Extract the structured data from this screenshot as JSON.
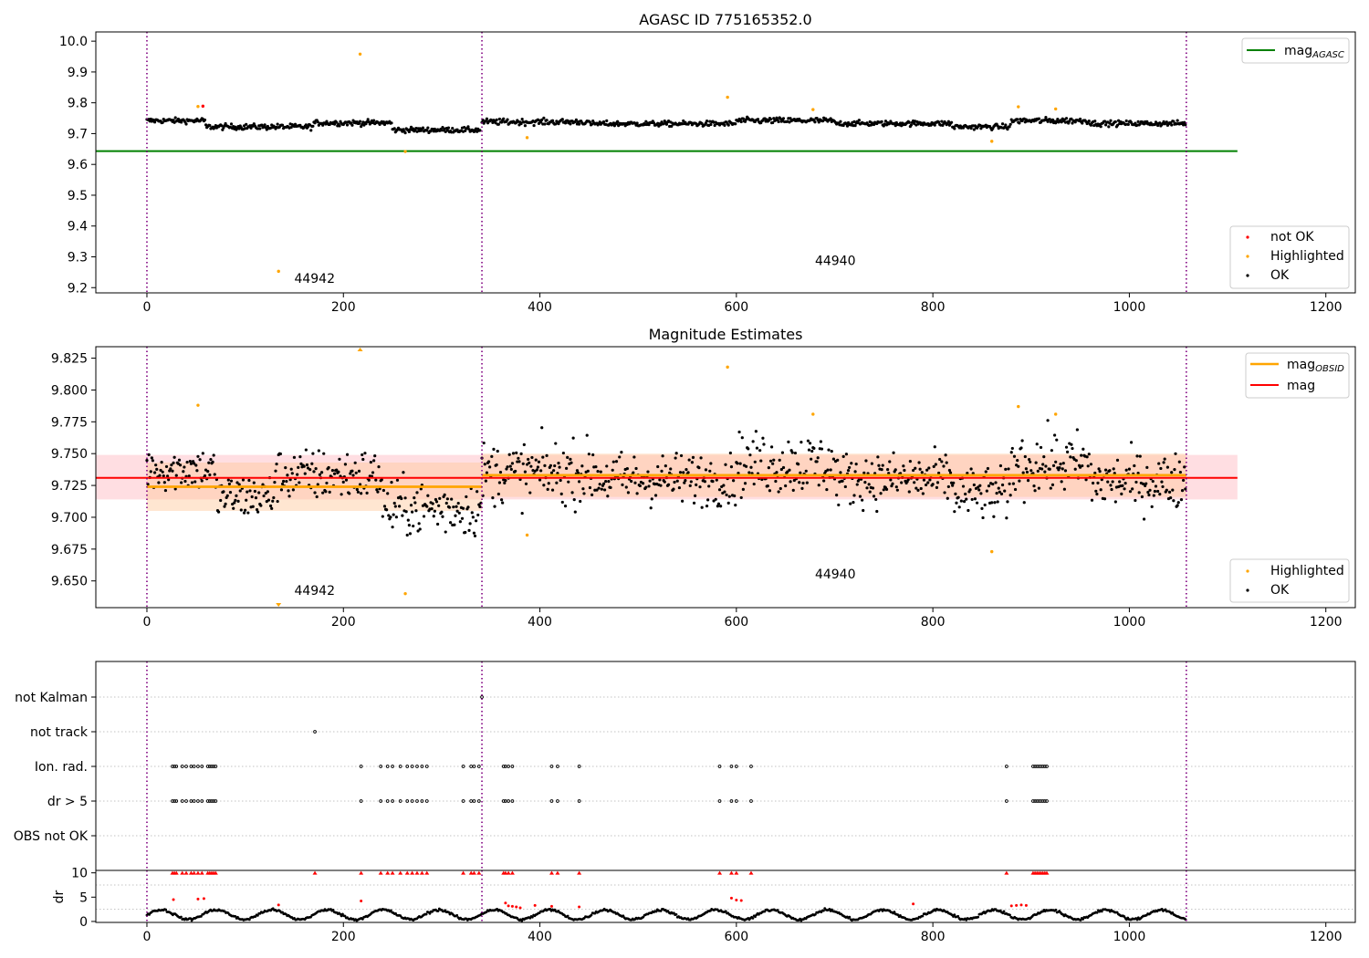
{
  "chart_data": [
    {
      "type": "scatter",
      "title": "AGASC ID 775165352.0",
      "xlabel": "",
      "ylabel": "",
      "xlim": [
        -52,
        1230
      ],
      "ylim": [
        9.183,
        10.03
      ],
      "xticks": [
        0,
        200,
        400,
        600,
        800,
        1000,
        1200
      ],
      "yticks": [
        9.2,
        9.3,
        9.4,
        9.5,
        9.6,
        9.7,
        9.8,
        9.9,
        10.0
      ],
      "grid": false,
      "obs_boundaries": [
        0,
        341,
        1058
      ],
      "annotations": [
        {
          "text": "44942",
          "x": 150,
          "y": 9.215
        },
        {
          "text": "44940",
          "x": 680,
          "y": 9.273
        }
      ],
      "reference_line": {
        "name": "mag_AGASC",
        "label_main": "mag",
        "label_sub": "AGASC",
        "y": 9.643,
        "x_range": [
          -52,
          1110
        ],
        "color": "#008000"
      },
      "series_ok": {
        "name": "OK",
        "color": "#000000",
        "segments": [
          {
            "x0": 0,
            "x1": 60,
            "level": 9.742,
            "spread": 0.014
          },
          {
            "x0": 60,
            "x1": 170,
            "level": 9.722,
            "spread": 0.015
          },
          {
            "x0": 170,
            "x1": 250,
            "level": 9.735,
            "spread": 0.015
          },
          {
            "x0": 250,
            "x1": 340,
            "level": 9.712,
            "spread": 0.014
          },
          {
            "x0": 341,
            "x1": 450,
            "level": 9.738,
            "spread": 0.016
          },
          {
            "x0": 450,
            "x1": 600,
            "level": 9.732,
            "spread": 0.014
          },
          {
            "x0": 600,
            "x1": 700,
            "level": 9.742,
            "spread": 0.016
          },
          {
            "x0": 700,
            "x1": 820,
            "level": 9.733,
            "spread": 0.014
          },
          {
            "x0": 820,
            "x1": 880,
            "level": 9.722,
            "spread": 0.014
          },
          {
            "x0": 880,
            "x1": 960,
            "level": 9.742,
            "spread": 0.016
          },
          {
            "x0": 960,
            "x1": 1058,
            "level": 9.733,
            "spread": 0.014
          }
        ]
      },
      "series_highlighted": {
        "name": "Highlighted",
        "color": "#ffa500",
        "points": [
          [
            52,
            9.788
          ],
          [
            217,
            9.958
          ],
          [
            134,
            9.253
          ],
          [
            263,
            9.642
          ],
          [
            387,
            9.687
          ],
          [
            591,
            9.818
          ],
          [
            678,
            9.778
          ],
          [
            860,
            9.675
          ],
          [
            887,
            9.787
          ],
          [
            925,
            9.78
          ]
        ]
      },
      "series_not_ok": {
        "name": "not OK",
        "color": "#ff0000",
        "points": [
          [
            57,
            9.789
          ]
        ]
      },
      "legend_upper": {
        "position": "upper right",
        "entries": [
          "mag_AGASC"
        ]
      },
      "legend_lower": {
        "position": "lower right",
        "entries": [
          "not OK",
          "Highlighted",
          "OK"
        ]
      }
    },
    {
      "type": "scatter",
      "title": "Magnitude Estimates",
      "xlabel": "",
      "ylabel": "",
      "xlim": [
        -52,
        1230
      ],
      "ylim": [
        9.629,
        9.834
      ],
      "xticks": [
        0,
        200,
        400,
        600,
        800,
        1000,
        1200
      ],
      "yticks": [
        9.65,
        9.675,
        9.7,
        9.725,
        9.75,
        9.775,
        9.8,
        9.825
      ],
      "ytick_labels": [
        "9.650",
        "9.675",
        "9.700",
        "9.725",
        "9.750",
        "9.775",
        "9.800",
        "9.825"
      ],
      "grid": false,
      "obs_boundaries": [
        0,
        341,
        1058
      ],
      "annotations": [
        {
          "text": "44942",
          "x": 150,
          "y": 9.639
        },
        {
          "text": "44940",
          "x": 680,
          "y": 9.652
        }
      ],
      "mag_line": {
        "name": "mag",
        "y": 9.731,
        "x_range": [
          -52,
          1110
        ],
        "band": [
          9.714,
          9.749
        ],
        "color": "#ff0000",
        "band_color": "#ffd0d6"
      },
      "obsid_mags": [
        {
          "x_range": [
            0,
            341
          ],
          "y": 9.724,
          "band": [
            9.705,
            9.743
          ]
        },
        {
          "x_range": [
            341,
            1058
          ],
          "y": 9.733,
          "band": [
            9.716,
            9.75
          ]
        }
      ],
      "obsid_color": "#ffa500",
      "series_ok": {
        "name": "OK",
        "color": "#000000",
        "segments": [
          {
            "x0": 0,
            "x1": 70,
            "level": 9.738,
            "spread": 0.028
          },
          {
            "x0": 70,
            "x1": 130,
            "level": 9.716,
            "spread": 0.03
          },
          {
            "x0": 130,
            "x1": 240,
            "level": 9.733,
            "spread": 0.034
          },
          {
            "x0": 240,
            "x1": 341,
            "level": 9.707,
            "spread": 0.036
          },
          {
            "x0": 341,
            "x1": 460,
            "level": 9.735,
            "spread": 0.04
          },
          {
            "x0": 460,
            "x1": 600,
            "level": 9.73,
            "spread": 0.034
          },
          {
            "x0": 600,
            "x1": 700,
            "level": 9.742,
            "spread": 0.04
          },
          {
            "x0": 700,
            "x1": 820,
            "level": 9.73,
            "spread": 0.034
          },
          {
            "x0": 820,
            "x1": 880,
            "level": 9.718,
            "spread": 0.034
          },
          {
            "x0": 880,
            "x1": 960,
            "level": 9.742,
            "spread": 0.04
          },
          {
            "x0": 960,
            "x1": 1058,
            "level": 9.728,
            "spread": 0.036
          }
        ]
      },
      "series_highlighted": {
        "name": "Highlighted",
        "color": "#ffa500",
        "points": [
          [
            52,
            9.788
          ],
          [
            263,
            9.64
          ],
          [
            387,
            9.686
          ],
          [
            591,
            9.818
          ],
          [
            678,
            9.781
          ],
          [
            860,
            9.673
          ],
          [
            887,
            9.787
          ],
          [
            925,
            9.781
          ]
        ],
        "clipped_markers": [
          [
            217,
            "top"
          ],
          [
            134,
            "bottom"
          ]
        ]
      },
      "legend_upper": {
        "position": "upper right",
        "entries": [
          "mag_OBSID",
          "mag"
        ]
      },
      "legend_upper_labels": {
        "obsid_main": "mag",
        "obsid_sub": "OBSID",
        "mag": "mag"
      },
      "legend_lower": {
        "position": "lower right",
        "entries": [
          "Highlighted",
          "OK"
        ]
      }
    },
    {
      "type": "scatter",
      "title": "",
      "xlabel": "",
      "ylabel": "",
      "xlim": [
        -52,
        1230
      ],
      "categories": [
        "not Kalman",
        "not track",
        "Ion. rad.",
        "dr > 5",
        "OBS not OK"
      ],
      "grid": true,
      "obs_boundaries": [
        0,
        341,
        1058
      ],
      "flags": {
        "not Kalman": [
          341
        ],
        "not track": [
          171
        ],
        "Ion. rad.": [
          26,
          28,
          30,
          36,
          40,
          45,
          48,
          52,
          56,
          62,
          64,
          66,
          68,
          70,
          218,
          238,
          245,
          250,
          258,
          265,
          270,
          275,
          280,
          285,
          322,
          330,
          333,
          338,
          363,
          365,
          368,
          372,
          412,
          418,
          440,
          583,
          595,
          600,
          615,
          875,
          902,
          904,
          906,
          908,
          910,
          912,
          914,
          916
        ],
        "dr > 5": [
          26,
          28,
          30,
          36,
          40,
          45,
          48,
          52,
          56,
          62,
          64,
          66,
          68,
          70,
          218,
          238,
          245,
          250,
          258,
          265,
          270,
          275,
          280,
          285,
          322,
          330,
          333,
          338,
          363,
          365,
          368,
          372,
          412,
          418,
          440,
          583,
          595,
          600,
          615,
          875,
          902,
          904,
          906,
          908,
          910,
          912,
          914,
          916
        ],
        "OBS not OK": []
      }
    },
    {
      "type": "scatter",
      "title": "",
      "xlabel": "",
      "ylabel": "dr",
      "xlim": [
        -52,
        1230
      ],
      "ylim": [
        -0.2,
        10.5
      ],
      "xticks": [
        0,
        200,
        400,
        600,
        800,
        1000,
        1200
      ],
      "yticks": [
        0,
        5,
        10
      ],
      "grid": true,
      "obs_boundaries": [
        0,
        341,
        1058
      ],
      "series_ok": {
        "name": "OK",
        "color": "#000000",
        "baseline": 1.4,
        "amplitude": 1.0
      },
      "series_flagged": {
        "color": "#ff0000",
        "clipped_at_10": [
          26,
          28,
          30,
          36,
          40,
          45,
          48,
          52,
          56,
          62,
          64,
          66,
          68,
          70,
          171,
          218,
          238,
          245,
          250,
          258,
          265,
          270,
          275,
          280,
          285,
          322,
          330,
          333,
          338,
          363,
          365,
          368,
          372,
          412,
          418,
          440,
          583,
          595,
          600,
          615,
          875,
          902,
          904,
          906,
          908,
          910,
          912,
          914,
          916
        ],
        "points": [
          [
            27,
            4.5
          ],
          [
            52,
            4.6
          ],
          [
            58,
            4.7
          ],
          [
            134,
            3.4
          ],
          [
            218,
            4.2
          ],
          [
            365,
            3.8
          ],
          [
            368,
            3.2
          ],
          [
            372,
            3.1
          ],
          [
            376,
            3.0
          ],
          [
            380,
            2.8
          ],
          [
            395,
            3.3
          ],
          [
            412,
            3.1
          ],
          [
            440,
            3.0
          ],
          [
            595,
            4.8
          ],
          [
            600,
            4.4
          ],
          [
            605,
            4.3
          ],
          [
            780,
            3.6
          ],
          [
            880,
            3.2
          ],
          [
            885,
            3.3
          ],
          [
            890,
            3.4
          ],
          [
            895,
            3.3
          ]
        ]
      }
    }
  ]
}
